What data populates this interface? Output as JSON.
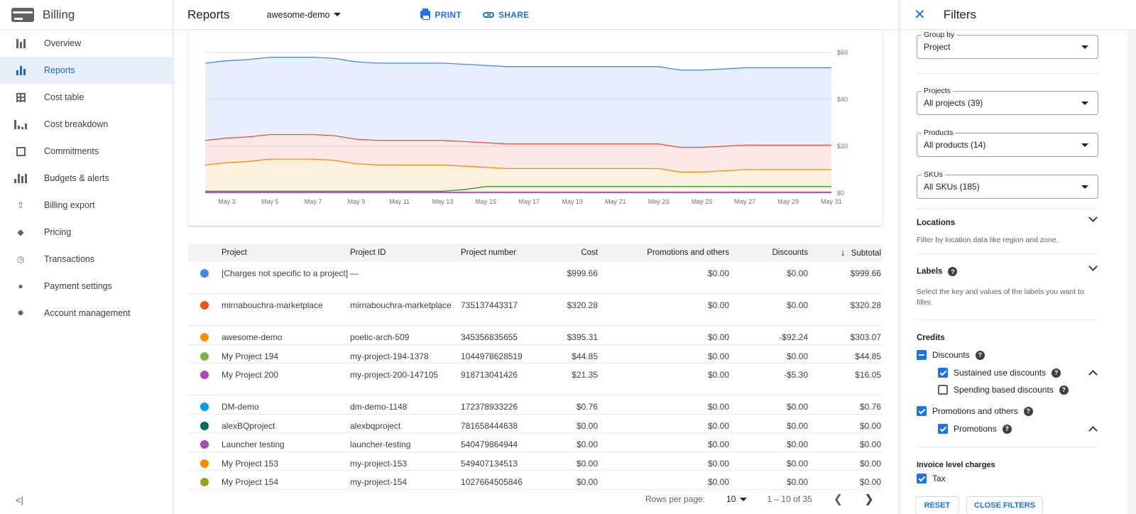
{
  "sidebar": {
    "title": "Billing",
    "items": [
      {
        "label": "Overview",
        "icon": "dashboard-icon"
      },
      {
        "label": "Reports",
        "icon": "bar-chart-icon",
        "active": true
      },
      {
        "label": "Cost table",
        "icon": "table-icon"
      },
      {
        "label": "Cost breakdown",
        "icon": "waterfall-icon"
      },
      {
        "label": "Commitments",
        "icon": "percent-icon"
      },
      {
        "label": "Budgets & alerts",
        "icon": "budget-icon"
      },
      {
        "label": "Billing export",
        "icon": "upload-icon"
      },
      {
        "label": "Pricing",
        "icon": "tag-icon"
      },
      {
        "label": "Transactions",
        "icon": "clock-icon"
      },
      {
        "label": "Payment settings",
        "icon": "person-icon"
      },
      {
        "label": "Account management",
        "icon": "gear-icon"
      }
    ],
    "collapse_glyph": "<|"
  },
  "header": {
    "title": "Reports",
    "project": "awesome-demo",
    "print_label": "PRINT",
    "share_label": "SHARE"
  },
  "chart_data": {
    "type": "area",
    "x": [
      "May 2",
      "May 3",
      "May 4",
      "May 5",
      "May 6",
      "May 7",
      "May 8",
      "May 9",
      "May 10",
      "May 11",
      "May 12",
      "May 13",
      "May 14",
      "May 15",
      "May 16",
      "May 17",
      "May 18",
      "May 19",
      "May 20",
      "May 21",
      "May 22",
      "May 23",
      "May 24",
      "May 25",
      "May 26",
      "May 27",
      "May 28",
      "May 29",
      "May 30",
      "May 31"
    ],
    "x_ticks": [
      "May 3",
      "May 5",
      "May 7",
      "May 9",
      "May 11",
      "May 13",
      "May 15",
      "May 17",
      "May 19",
      "May 21",
      "May 23",
      "May 25",
      "May 27",
      "May 29",
      "May 31"
    ],
    "y_ticks": [
      "$0",
      "$20",
      "$40",
      "$60"
    ],
    "ylim": [
      0,
      60
    ],
    "stacked": true,
    "series": [
      {
        "color": "#fb8c00",
        "values": [
          12,
          13,
          13.5,
          14.5,
          14.5,
          14.5,
          14,
          12.5,
          12,
          12,
          12,
          12,
          11.5,
          11,
          10.5,
          10.5,
          10.5,
          10.5,
          10.5,
          10.5,
          10.5,
          10.5,
          9,
          9,
          9.5,
          10,
          10,
          10,
          10,
          10
        ]
      },
      {
        "color": "#e8553f",
        "values": [
          10.5,
          10.5,
          10.5,
          10.5,
          10.5,
          10.5,
          10.5,
          10.5,
          10.5,
          10.5,
          10.5,
          10.5,
          10.5,
          10.5,
          10.5,
          10.5,
          10.5,
          10.5,
          10.5,
          10.5,
          10.5,
          10.5,
          10.5,
          10.5,
          10.5,
          10.5,
          10.5,
          10.5,
          10.5,
          10.5
        ]
      },
      {
        "color": "#4285f4",
        "values": [
          33,
          33,
          33,
          33,
          33,
          33,
          33,
          33,
          33,
          33,
          33,
          33,
          33,
          33,
          33,
          33,
          33,
          33,
          33,
          33,
          33,
          33,
          33,
          33,
          33,
          33,
          33,
          33,
          33,
          33
        ]
      },
      {
        "color": "#43a047",
        "values": [
          0.8,
          0.8,
          0.8,
          0.8,
          0.8,
          0.8,
          0.8,
          0.8,
          0.8,
          0.8,
          0.8,
          0.8,
          1.5,
          2.8,
          2.8,
          2.8,
          2.8,
          2.8,
          2.8,
          2.8,
          2.8,
          2.8,
          2.8,
          2.8,
          2.8,
          2.8,
          2.8,
          2.8,
          2.8,
          2.8
        ]
      },
      {
        "color": "#8e24aa",
        "values": [
          0.3,
          0.3,
          0.3,
          0.3,
          0.3,
          0.3,
          0.3,
          0.3,
          0.3,
          0.3,
          0.3,
          0.3,
          0.3,
          0.3,
          0.3,
          0.3,
          0.3,
          0.3,
          0.3,
          0.3,
          0.3,
          0.3,
          0.3,
          0.3,
          0.3,
          0.3,
          0.3,
          0.3,
          0.3,
          0.3
        ]
      }
    ],
    "grid": true,
    "legend": "none"
  },
  "table": {
    "columns": [
      "Project",
      "Project ID",
      "Project number",
      "Cost",
      "Promotions and others",
      "Discounts",
      "Subtotal"
    ],
    "sort_glyph": "↓",
    "rows": [
      {
        "color": "#4285f4",
        "project": "[Charges not specific to a project]",
        "id": "—",
        "number": "",
        "cost": "$999.66",
        "promo": "$0.00",
        "disc": "$0.00",
        "sub": "$999.66"
      },
      {
        "color": "#f4511e",
        "project": "mirnabouchra-marketplace",
        "id": "mirnabouchra-marketplace",
        "number": "735137443317",
        "cost": "$320.28",
        "promo": "$0.00",
        "disc": "$0.00",
        "sub": "$320.28"
      },
      {
        "color": "#fb8c00",
        "project": "awesome-demo",
        "id": "poetic-arch-509",
        "number": "345356835655",
        "cost": "$395.31",
        "promo": "$0.00",
        "disc": "-$92.24",
        "sub": "$303.07"
      },
      {
        "color": "#7cb342",
        "project": "My Project 194",
        "id": "my-project-194-1378",
        "number": "1044978628519",
        "cost": "$44.85",
        "promo": "$0.00",
        "disc": "$0.00",
        "sub": "$44.85"
      },
      {
        "color": "#ab47bc",
        "project": "My Project 200",
        "id": "my-project-200-147105",
        "number": "918713041426",
        "cost": "$21.35",
        "promo": "$0.00",
        "disc": "-$5.30",
        "sub": "$16.05"
      },
      {
        "color": "#039be5",
        "project": "DM-demo",
        "id": "dm-demo-1148",
        "number": "172378933226",
        "cost": "$0.76",
        "promo": "$0.00",
        "disc": "$0.00",
        "sub": "$0.76"
      },
      {
        "color": "#00695c",
        "project": "alexBQproject",
        "id": "alexbqproject",
        "number": "781658444638",
        "cost": "$0.00",
        "promo": "$0.00",
        "disc": "$0.00",
        "sub": "$0.00"
      },
      {
        "color": "#ab47bc",
        "project": "Launcher testing",
        "id": "launcher-testing",
        "number": "540479864944",
        "cost": "$0.00",
        "promo": "$0.00",
        "disc": "$0.00",
        "sub": "$0.00"
      },
      {
        "color": "#fb8c00",
        "project": "My Project 153",
        "id": "my-project-153",
        "number": "549407134513",
        "cost": "$0.00",
        "promo": "$0.00",
        "disc": "$0.00",
        "sub": "$0.00"
      },
      {
        "color": "#9e9d24",
        "project": "My Project 154",
        "id": "my-project-154",
        "number": "1027664505846",
        "cost": "$0.00",
        "promo": "$0.00",
        "disc": "$0.00",
        "sub": "$0.00"
      }
    ]
  },
  "pager": {
    "rows_label": "Rows per page:",
    "rows_value": "10",
    "range": "1 – 10 of 35"
  },
  "filters": {
    "title": "Filters",
    "group_by": {
      "label": "Group by",
      "value": "Project"
    },
    "projects": {
      "label": "Projects",
      "value": "All projects (39)"
    },
    "products": {
      "label": "Products",
      "value": "All products (14)"
    },
    "skus": {
      "label": "SKUs",
      "value": "All SKUs (185)"
    },
    "locations": {
      "title": "Locations",
      "desc": "Filter by location data like region and zone."
    },
    "labels": {
      "title": "Labels",
      "desc": "Select the key and values of the labels you want to filter."
    },
    "credits": {
      "title": "Credits",
      "discounts": "Discounts",
      "sustained": "Sustained use discounts",
      "spending": "Spending based discounts",
      "promotions_others": "Promotions and others",
      "promotions": "Promotions"
    },
    "invoice": {
      "title": "Invoice level charges",
      "tax": "Tax"
    },
    "help_glyph": "?",
    "reset_label": "RESET",
    "close_label": "CLOSE FILTERS"
  }
}
